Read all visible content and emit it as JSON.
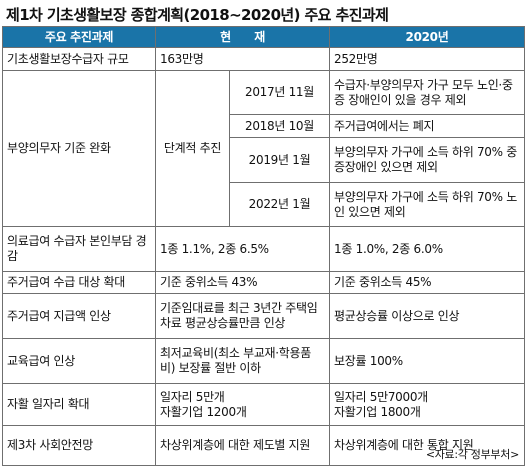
{
  "title": "제1차 기초생활보장 종합계획(2018∼2020년) 주요 추진과제",
  "header": {
    "task": "주요 추진과제",
    "current": "현　　재",
    "target": "2020년"
  },
  "rows": {
    "r1": {
      "task": "기초생활보장수급자 규모",
      "current": "163만명",
      "target": "252만명"
    },
    "r2": {
      "task": "부양의무자 기준 완화",
      "mode": "단계적 추진",
      "steps": [
        {
          "date": "2017년 11월",
          "desc": "수급자·부양의무자 가구 모두 노인·중증 장애인이 있을 경우 제외"
        },
        {
          "date": "2018년 10월",
          "desc": "주거급여에서는 폐지"
        },
        {
          "date": "2019년 1월",
          "desc": "부양의무자 가구에 소득 하위 70% 중증장애인 있으면 제외"
        },
        {
          "date": "2022년 1월",
          "desc": "부양의무자 가구에 소득 하위 70% 노인 있으면 제외"
        }
      ]
    },
    "r3": {
      "task": "의료급여 수급자 본인부담 경감",
      "current": "1종 1.1%, 2종 6.5%",
      "target": "1종 1.0%, 2종 6.0%"
    },
    "r4": {
      "task": "주거급여 수급 대상 확대",
      "current": "기준 중위소득 43%",
      "target": "기준 중위소득 45%"
    },
    "r5": {
      "task": "주거급여 지급액 인상",
      "current": "기준임대료를 최근 3년간 주택임차료 평균상승률만큼 인상",
      "target": "평균상승률 이상으로 인상"
    },
    "r6": {
      "task": "교육급여 인상",
      "current": "최저교육비(최소 부교재·학용품비) 보장률 절반 이하",
      "target": "보장률 100%"
    },
    "r7": {
      "task": "자활 일자리 확대",
      "current_line1": "일자리 5만개",
      "current_line2": "자활기업 1200개",
      "target_line1": "일자리 5만7000개",
      "target_line2": "자활기업 1800개"
    },
    "r8": {
      "task": "제3차 사회안전망",
      "current": "차상위계층에 대한 제도별 지원",
      "target": "차상위계층에 대한 통합 지원"
    }
  },
  "source": "<자료:각 정부부처>"
}
